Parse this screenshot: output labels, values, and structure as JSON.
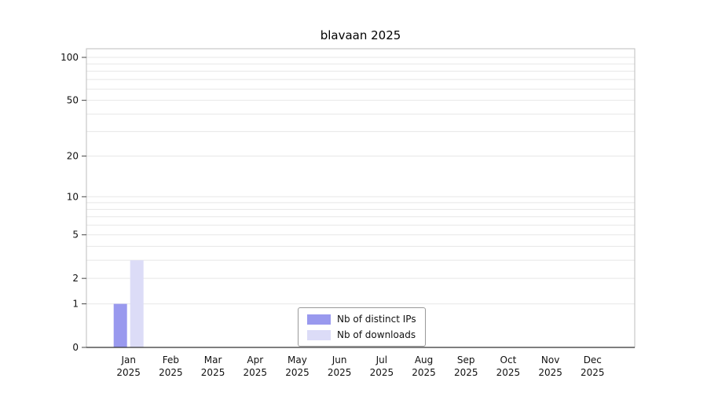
{
  "chart_data": {
    "type": "bar",
    "title": "blavaan 2025",
    "categories": [
      "Jan",
      "Feb",
      "Mar",
      "Apr",
      "May",
      "Jun",
      "Jul",
      "Aug",
      "Sep",
      "Oct",
      "Nov",
      "Dec"
    ],
    "year": "2025",
    "series": [
      {
        "name": "Nb of distinct IPs",
        "color": "#9999ee",
        "values": [
          1,
          0,
          0,
          0,
          0,
          0,
          0,
          0,
          0,
          0,
          0,
          0
        ]
      },
      {
        "name": "Nb of downloads",
        "color": "#dcdcf7",
        "values": [
          3,
          0,
          0,
          0,
          0,
          0,
          0,
          0,
          0,
          0,
          0,
          0
        ]
      }
    ],
    "y_ticks": [
      0,
      1,
      2,
      5,
      10,
      20,
      50,
      100
    ],
    "y_scale": "log1p",
    "ylim": [
      0,
      100
    ],
    "grid": true,
    "legend_position": "bottom-center"
  }
}
